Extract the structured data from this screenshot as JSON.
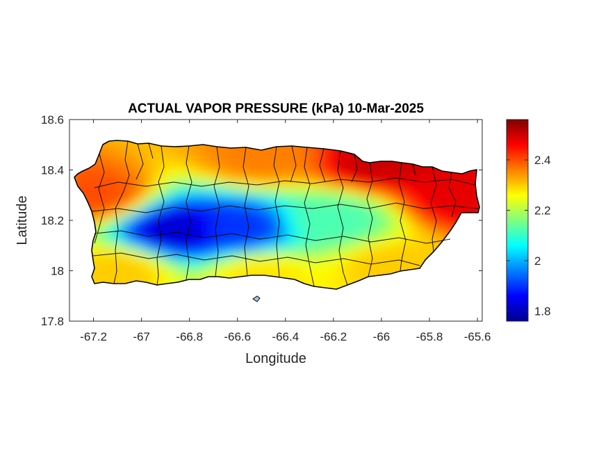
{
  "figure": {
    "title": "ACTUAL VAPOR PRESSURE (kPa) 10-Mar-2025",
    "xlabel": "Longitude",
    "ylabel": "Latitude"
  },
  "axes": {
    "xlim": [
      -67.3,
      -65.58
    ],
    "ylim": [
      17.8,
      18.6
    ],
    "xticks": [
      -67.2,
      -67,
      -66.8,
      -66.6,
      -66.4,
      -66.2,
      -66,
      -65.8,
      -65.6
    ],
    "xtick_labels": [
      "-67.2",
      "-67",
      "-66.8",
      "-66.6",
      "-66.4",
      "-66.2",
      "-66",
      "-65.8",
      "-65.6"
    ],
    "yticks": [
      17.8,
      18,
      18.2,
      18.4,
      18.6
    ],
    "ytick_labels": [
      "17.8",
      "18",
      "18.2",
      "18.4",
      "18.6"
    ]
  },
  "colorbar": {
    "range": [
      1.76,
      2.56
    ],
    "ticks": [
      1.8,
      2,
      2.2,
      2.4
    ],
    "tick_labels": [
      "1.8",
      "2",
      "2.2",
      "2.4"
    ],
    "colormap": "jet",
    "stops": [
      "#00008f",
      "#0000ff",
      "#00ffff",
      "#ffff00",
      "#ff0000",
      "#800000"
    ]
  },
  "map": {
    "region": "Puerto Rico",
    "variable_unit": "kPa",
    "outline_color": "#000000",
    "regional_values_kPa": [
      {
        "area": "north coast",
        "lon": -66.5,
        "lat": 18.45,
        "value": 2.36
      },
      {
        "area": "northeast coast",
        "lon": -66.0,
        "lat": 18.43,
        "value": 2.5
      },
      {
        "area": "east tip",
        "lon": -65.65,
        "lat": 18.3,
        "value": 2.48
      },
      {
        "area": "west coast",
        "lon": -67.2,
        "lat": 18.3,
        "value": 2.4
      },
      {
        "area": "central mountains (west)",
        "lon": -66.85,
        "lat": 18.16,
        "value": 1.82
      },
      {
        "area": "central mountains (center)",
        "lon": -66.6,
        "lat": 18.17,
        "value": 1.9
      },
      {
        "area": "central interior (east)",
        "lon": -66.2,
        "lat": 18.2,
        "value": 2.12
      },
      {
        "area": "south coast",
        "lon": -66.5,
        "lat": 17.98,
        "value": 2.28
      },
      {
        "area": "southwest coast",
        "lon": -67.1,
        "lat": 18.0,
        "value": 2.3
      },
      {
        "area": "southeast coast",
        "lon": -65.95,
        "lat": 18.02,
        "value": 2.3
      }
    ]
  }
}
